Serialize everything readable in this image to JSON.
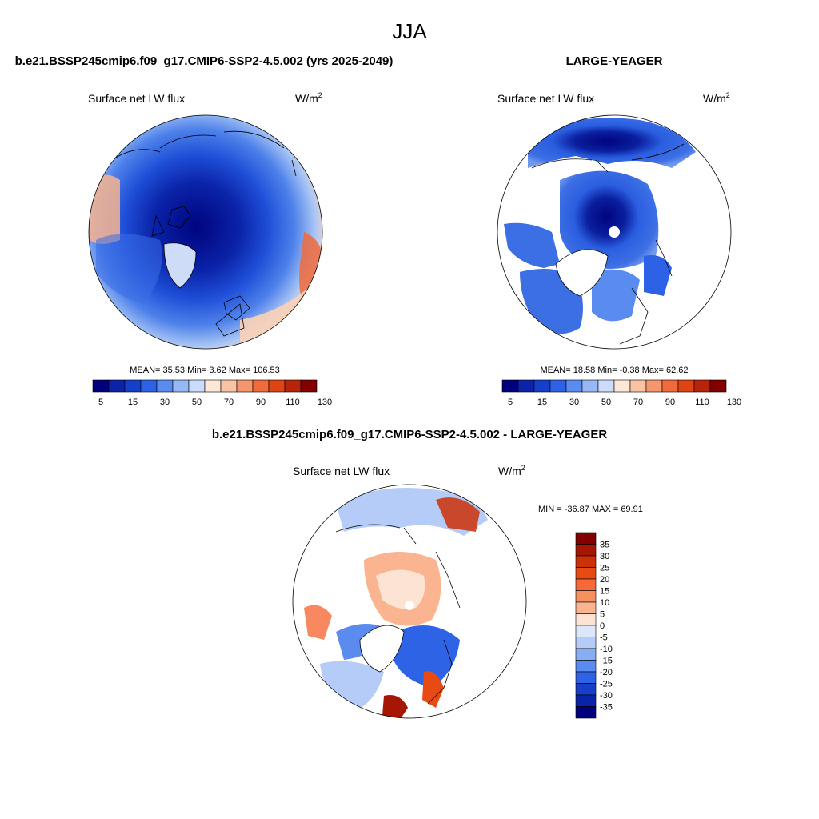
{
  "figure": {
    "season": "JJA",
    "left_panel": {
      "title": "b.e21.BSSP245cmip6.f09_g17.CMIP6-SSP2-4.5.002 (yrs 2025-2049)",
      "variable": "Surface net LW flux",
      "units": "W/m",
      "units_sup": "2",
      "stats": {
        "mean_label": "MEAN=",
        "mean": "35.53",
        "min_label": "Min=",
        "min": "3.62",
        "max_label": "Max=",
        "max": "106.53"
      }
    },
    "right_panel": {
      "title": "LARGE-YEAGER",
      "variable": "Surface net LW flux",
      "units": "W/m",
      "units_sup": "2",
      "stats": {
        "mean_label": "MEAN=",
        "mean": "18.58",
        "min_label": "Min=",
        "min": "-0.38",
        "max_label": "Max=",
        "max": "62.62"
      }
    },
    "diff_panel": {
      "title": "b.e21.BSSP245cmip6.f09_g17.CMIP6-SSP2-4.5.002 - LARGE-YEAGER",
      "variable": "Surface net LW flux",
      "units": "W/m",
      "units_sup": "2",
      "minmax": "MIN = -36.87 MAX =  69.91"
    },
    "colorbar_top": {
      "tick_labels": [
        "5",
        "15",
        "30",
        "50",
        "70",
        "90",
        "110",
        "130"
      ],
      "colors": [
        "#00007f",
        "#0a23a8",
        "#1440cc",
        "#2e62e6",
        "#5a8cf0",
        "#96b9f5",
        "#cbdcfa",
        "#fde8d8",
        "#fac3a3",
        "#f5966b",
        "#f06a3c",
        "#e04314",
        "#b8240a",
        "#820000"
      ]
    },
    "colorbar_diff": {
      "tick_labels": [
        "35",
        "30",
        "25",
        "20",
        "15",
        "10",
        "5",
        "0",
        "-5",
        "-10",
        "-15",
        "-20",
        "-25",
        "-30",
        "-35"
      ],
      "colors": [
        "#820000",
        "#a61703",
        "#cc3008",
        "#e84a14",
        "#f56a38",
        "#f7905f",
        "#fab48f",
        "#fde3d3",
        "#dbe7fb",
        "#b4ccf7",
        "#88adf3",
        "#5a8bef",
        "#2f63e6",
        "#1640c9",
        "#0924a6",
        "#00007f"
      ]
    }
  }
}
